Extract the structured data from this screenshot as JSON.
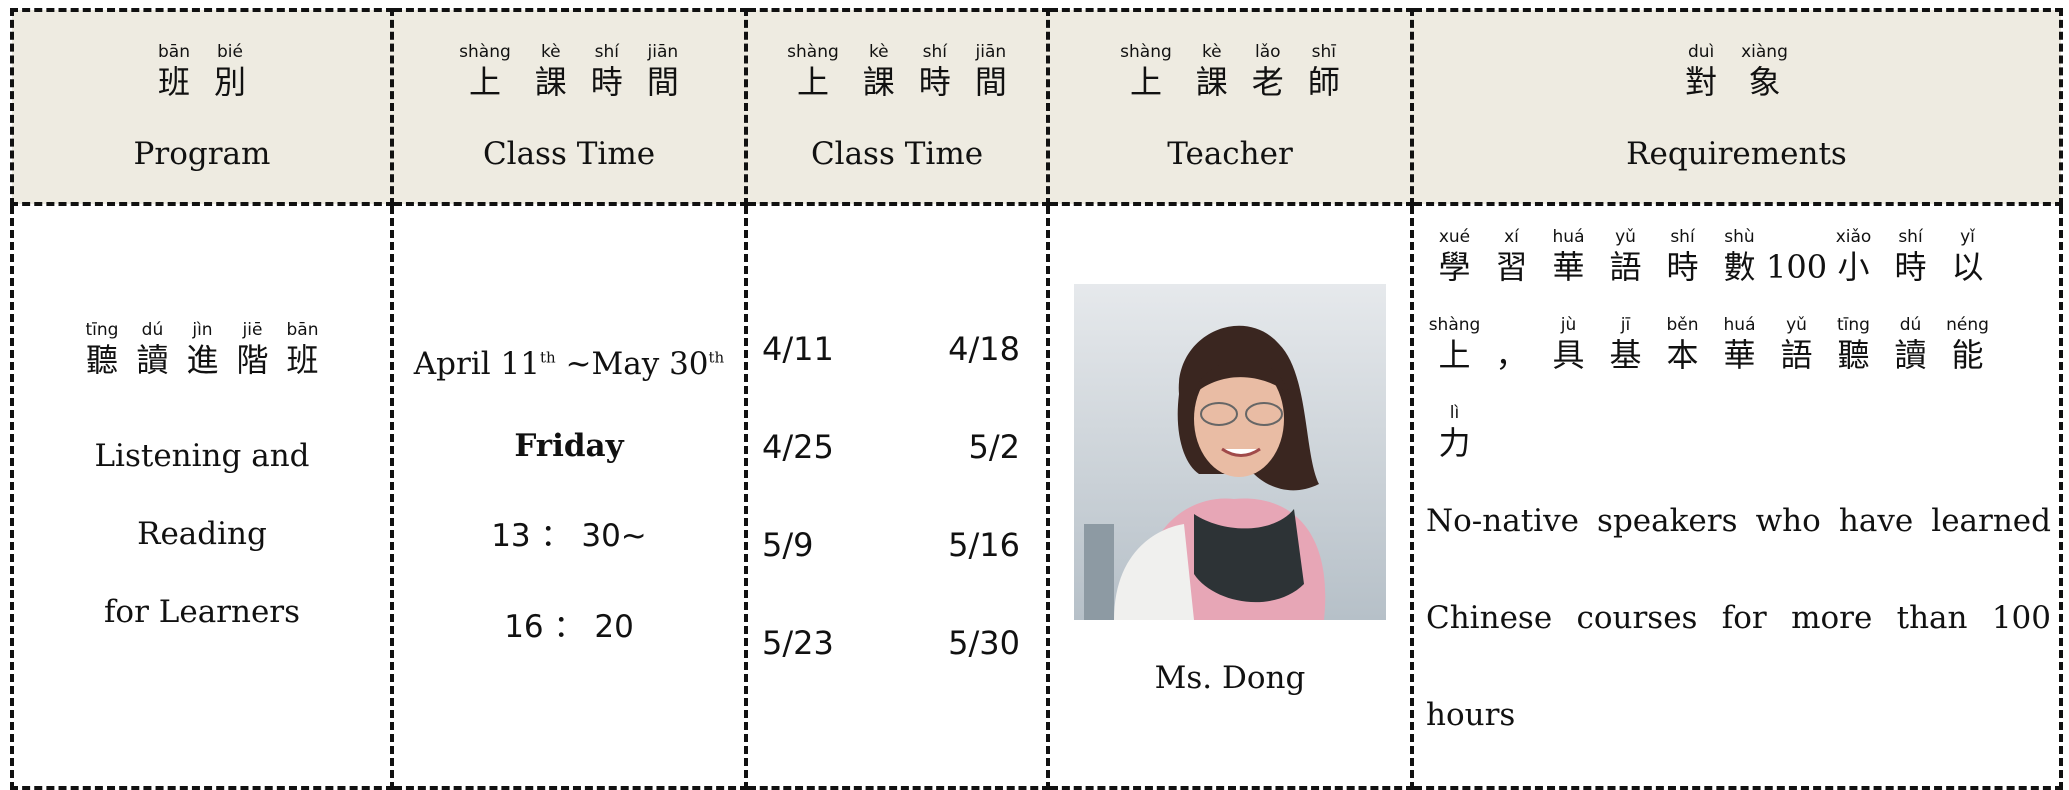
{
  "header": {
    "columns": [
      {
        "ruby": [
          {
            "char": "班",
            "pinyin": "bān"
          },
          {
            "char": "別",
            "pinyin": "bié"
          }
        ],
        "english": "Program"
      },
      {
        "ruby": [
          {
            "char": "上",
            "pinyin": "shàng"
          },
          {
            "char": "課",
            "pinyin": "kè"
          },
          {
            "char": "時",
            "pinyin": "shí"
          },
          {
            "char": "間",
            "pinyin": "jiān"
          }
        ],
        "english": "Class Time"
      },
      {
        "ruby": [
          {
            "char": "上",
            "pinyin": "shàng"
          },
          {
            "char": "課",
            "pinyin": "kè"
          },
          {
            "char": "時",
            "pinyin": "shí"
          },
          {
            "char": "間",
            "pinyin": "jiān"
          }
        ],
        "english": "Class Time"
      },
      {
        "ruby": [
          {
            "char": "上",
            "pinyin": "shàng"
          },
          {
            "char": "課",
            "pinyin": "kè"
          },
          {
            "char": "老",
            "pinyin": "lǎo"
          },
          {
            "char": "師",
            "pinyin": "shī"
          }
        ],
        "english": "Teacher"
      },
      {
        "ruby": [
          {
            "char": "對",
            "pinyin": "duì"
          },
          {
            "char": "象",
            "pinyin": "xiàng"
          }
        ],
        "english": "Requirements"
      }
    ]
  },
  "row": {
    "program": {
      "ruby": [
        {
          "char": "聽",
          "pinyin": "tīng"
        },
        {
          "char": "讀",
          "pinyin": "dú"
        },
        {
          "char": "進",
          "pinyin": "jìn"
        },
        {
          "char": "階",
          "pinyin": "jiē"
        },
        {
          "char": "班",
          "pinyin": "bān"
        }
      ],
      "english": [
        "Listening and",
        "Reading",
        "for Learners"
      ]
    },
    "class_time": {
      "start": "April 11",
      "start_sup": "th",
      "end": "~May 30",
      "end_sup": "th",
      "day": "Friday",
      "from": "13 ： 30~",
      "to": "16 ： 20"
    },
    "dates": [
      [
        "4/11",
        "4/18"
      ],
      [
        "4/25",
        "5/2"
      ],
      [
        "5/9",
        "5/16"
      ],
      [
        "5/23",
        "5/30"
      ]
    ],
    "teacher": "Ms. Dong",
    "requirements": {
      "ruby": [
        {
          "char": "學",
          "pinyin": "xué"
        },
        {
          "char": "習",
          "pinyin": "xí"
        },
        {
          "char": "華",
          "pinyin": "huá"
        },
        {
          "char": "語",
          "pinyin": "yǔ"
        },
        {
          "char": "時",
          "pinyin": "shí"
        },
        {
          "char": "數",
          "pinyin": "shù"
        },
        {
          "char": "100"
        },
        {
          "char": "小",
          "pinyin": "xiǎo"
        },
        {
          "char": "時",
          "pinyin": "shí"
        },
        {
          "char": "以",
          "pinyin": "yǐ"
        },
        {
          "char": "上",
          "pinyin": "shàng"
        },
        {
          "char": "，"
        },
        {
          "char": "具",
          "pinyin": "jù"
        },
        {
          "char": "基",
          "pinyin": "jī"
        },
        {
          "char": "本",
          "pinyin": "běn"
        },
        {
          "char": "華",
          "pinyin": "huá"
        },
        {
          "char": "語",
          "pinyin": "yǔ"
        },
        {
          "char": "聽",
          "pinyin": "tīng"
        },
        {
          "char": "讀",
          "pinyin": "dú"
        },
        {
          "char": "能",
          "pinyin": "néng"
        },
        {
          "char": "力",
          "pinyin": "lì"
        }
      ],
      "english": "No-native speakers who have learned Chinese courses for more than 100 hours"
    }
  }
}
